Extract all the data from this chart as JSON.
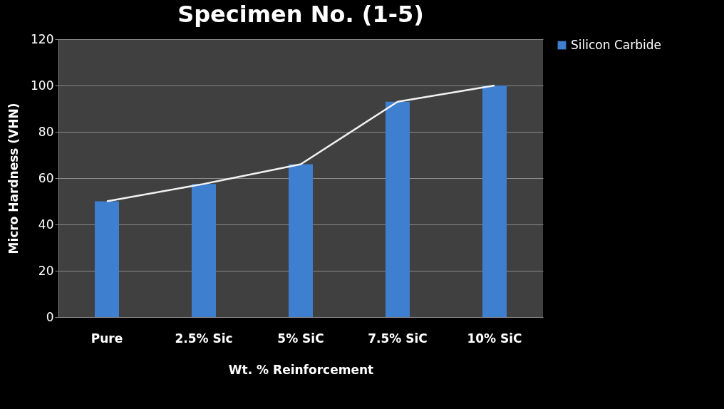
{
  "chart_data": {
    "type": "bar",
    "title": "Specimen  No. (1-5)",
    "xlabel": "Wt. % Reinforcement",
    "ylabel": "Micro Hardness (VHN)",
    "categories": [
      "Pure",
      "2.5% Sic",
      "5% SiC",
      "7.5% SiC",
      "10% SiC"
    ],
    "series": [
      {
        "name": "Silicon Carbide",
        "color": "#3e7fd0",
        "values": [
          50,
          57.5,
          66,
          93,
          100
        ]
      },
      {
        "type": "line",
        "color": "#f2f2f2",
        "values": [
          50,
          57.5,
          66,
          93,
          100
        ]
      }
    ],
    "ylim": [
      0,
      120
    ],
    "yticks": [
      0,
      20,
      40,
      60,
      80,
      100,
      120
    ],
    "grid": "y",
    "legend": "right"
  }
}
